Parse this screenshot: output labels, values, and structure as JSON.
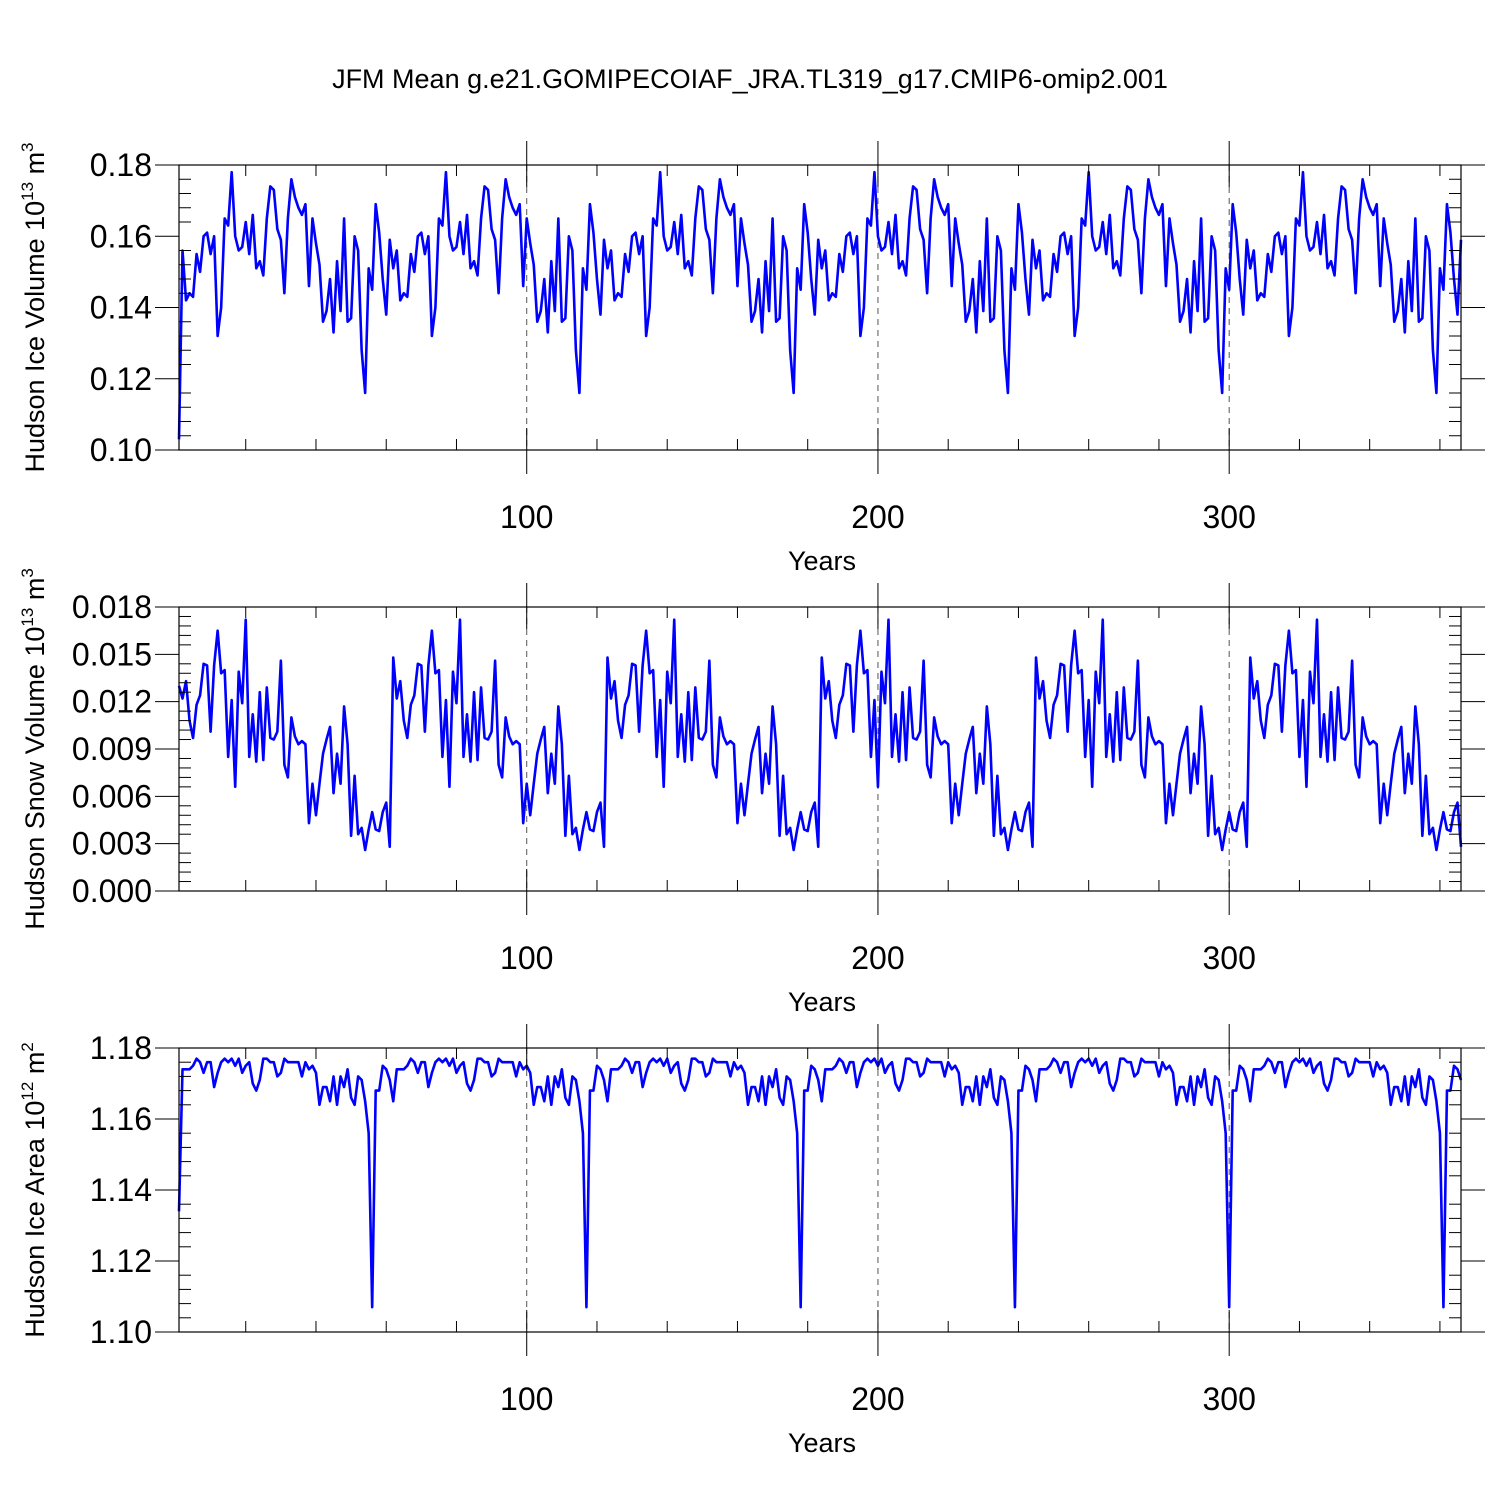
{
  "title": "JFM Mean g.e21.GOMIPECOIAF_JRA.TL319_g17.CMIP6-omip2.001",
  "colors": {
    "line": "#0000ff",
    "axes": "#000000",
    "refline": "#555555"
  },
  "chart_data": [
    {
      "type": "line",
      "ylabel": "Hudson Ice Volume",
      "units": {
        "base": "10",
        "exp": "13",
        "unit": "m",
        "unit_exp": "3"
      },
      "xlabel": "Years",
      "xlim": [
        1,
        366
      ],
      "ylim": [
        0.1,
        0.18
      ],
      "xticks": [
        100,
        200,
        300
      ],
      "yticks": [
        0.1,
        0.12,
        0.14,
        0.16,
        0.18
      ],
      "ytick_labels": [
        "0.10",
        "0.12",
        "0.14",
        "0.16",
        "0.18"
      ],
      "grid": "dashed vertical at x ticks",
      "series": [
        {
          "period": 61,
          "first": 0.103,
          "values": [
            0.156,
            0.142,
            0.144,
            0.143,
            0.155,
            0.15,
            0.16,
            0.161,
            0.155,
            0.16,
            0.132,
            0.14,
            0.165,
            0.163,
            0.178,
            0.16,
            0.156,
            0.157,
            0.164,
            0.155,
            0.166,
            0.151,
            0.153,
            0.149,
            0.165,
            0.174,
            0.173,
            0.162,
            0.159,
            0.144,
            0.165,
            0.176,
            0.171,
            0.168,
            0.166,
            0.169,
            0.146,
            0.165,
            0.158,
            0.152,
            0.136,
            0.139,
            0.148,
            0.133,
            0.153,
            0.139,
            0.165,
            0.136,
            0.137,
            0.16,
            0.156,
            0.128,
            0.116,
            0.151,
            0.145,
            0.169,
            0.161,
            0.148,
            0.138,
            0.159,
            0.151
          ]
        }
      ]
    },
    {
      "type": "line",
      "ylabel": "Hudson Snow Volume",
      "units": {
        "base": "10",
        "exp": "13",
        "unit": "m",
        "unit_exp": "3"
      },
      "xlabel": "Years",
      "xlim": [
        1,
        366
      ],
      "ylim": [
        0.0,
        0.018
      ],
      "xticks": [
        100,
        200,
        300
      ],
      "yticks": [
        0.0,
        0.003,
        0.006,
        0.009,
        0.012,
        0.015,
        0.018
      ],
      "ytick_labels": [
        "0.000",
        "0.003",
        "0.006",
        "0.009",
        "0.012",
        "0.015",
        "0.018"
      ],
      "grid": "dashed vertical at x ticks",
      "series": [
        {
          "period": 61,
          "first": 0.013,
          "values": [
            0.0122,
            0.0133,
            0.0108,
            0.0097,
            0.0118,
            0.0124,
            0.0144,
            0.0143,
            0.0101,
            0.0143,
            0.0165,
            0.0138,
            0.014,
            0.0085,
            0.0121,
            0.0066,
            0.0139,
            0.0119,
            0.0172,
            0.0085,
            0.0112,
            0.0082,
            0.0126,
            0.0083,
            0.0129,
            0.0097,
            0.0096,
            0.0101,
            0.0146,
            0.008,
            0.0072,
            0.011,
            0.0098,
            0.0093,
            0.0095,
            0.0093,
            0.0043,
            0.0068,
            0.0048,
            0.0068,
            0.0087,
            0.0096,
            0.0104,
            0.0062,
            0.0087,
            0.0068,
            0.0117,
            0.0093,
            0.0035,
            0.0073,
            0.0036,
            0.004,
            0.0026,
            0.0039,
            0.005,
            0.0039,
            0.0038,
            0.005,
            0.0056,
            0.0028,
            0.0148
          ]
        }
      ]
    },
    {
      "type": "line",
      "ylabel": "Hudson Ice Area",
      "units": {
        "base": "10",
        "exp": "12",
        "unit": "m",
        "unit_exp": "2"
      },
      "xlabel": "Years",
      "xlim": [
        1,
        366
      ],
      "ylim": [
        1.1,
        1.18
      ],
      "xticks": [
        100,
        200,
        300
      ],
      "yticks": [
        1.1,
        1.12,
        1.14,
        1.16,
        1.18
      ],
      "ytick_labels": [
        "1.10",
        "1.12",
        "1.14",
        "1.16",
        "1.18"
      ],
      "grid": "dashed vertical at x ticks",
      "series": [
        {
          "period": 61,
          "first": 1.134,
          "values": [
            1.174,
            1.174,
            1.174,
            1.175,
            1.177,
            1.176,
            1.173,
            1.176,
            1.176,
            1.169,
            1.173,
            1.176,
            1.177,
            1.176,
            1.177,
            1.175,
            1.177,
            1.173,
            1.175,
            1.176,
            1.17,
            1.168,
            1.171,
            1.177,
            1.177,
            1.176,
            1.176,
            1.172,
            1.173,
            1.177,
            1.176,
            1.176,
            1.176,
            1.176,
            1.172,
            1.176,
            1.174,
            1.175,
            1.173,
            1.164,
            1.169,
            1.169,
            1.165,
            1.172,
            1.164,
            1.172,
            1.169,
            1.174,
            1.166,
            1.164,
            1.172,
            1.171,
            1.165,
            1.156,
            1.107,
            1.168,
            1.168,
            1.175,
            1.174,
            1.171,
            1.165
          ]
        }
      ]
    }
  ]
}
